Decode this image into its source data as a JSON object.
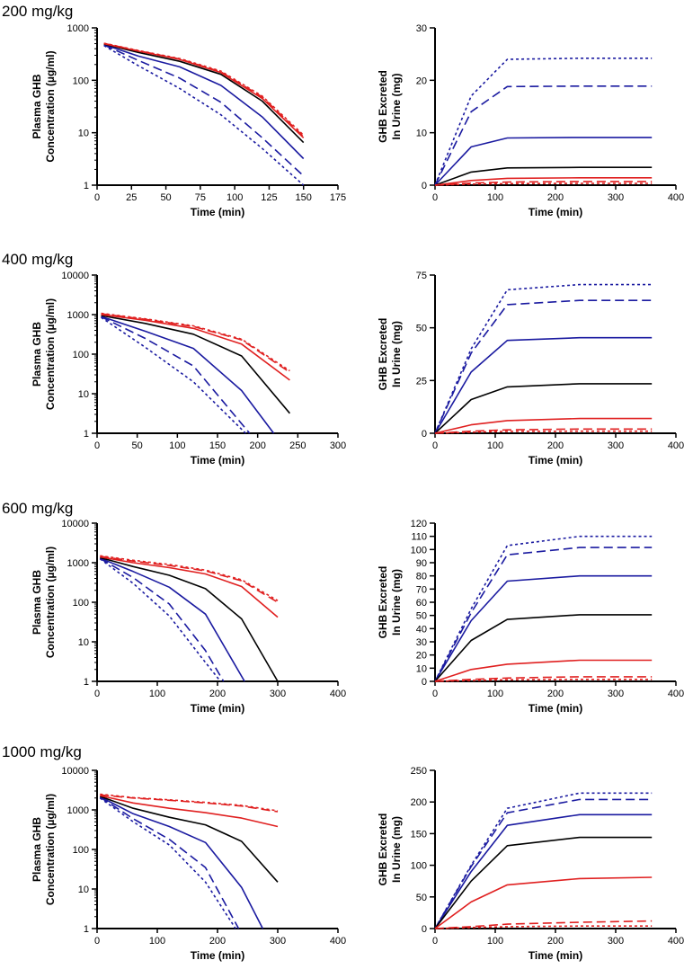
{
  "figure": {
    "series_styles": [
      {
        "color": "#1a1aa0",
        "dash": "3,3"
      },
      {
        "color": "#1a1aa0",
        "dash": "10,5"
      },
      {
        "color": "#1a1aa0",
        "dash": ""
      },
      {
        "color": "#000000",
        "dash": ""
      },
      {
        "color": "#e02020",
        "dash": ""
      },
      {
        "color": "#e02020",
        "dash": "10,5"
      },
      {
        "color": "#e02020",
        "dash": "3,3"
      }
    ]
  },
  "chart_data": [
    {
      "panel": "200 mg/kg plasma",
      "type": "line",
      "yscale": "log",
      "title": "200 mg/kg",
      "xlabel": "Time (min)",
      "ylabel": [
        "Plasma GHB",
        "Concentration (µg/ml)"
      ],
      "xlim": [
        0,
        175
      ],
      "ylim": [
        1,
        1000
      ],
      "xticks": [
        0,
        25,
        50,
        75,
        100,
        125,
        150,
        175
      ],
      "yticks": [
        1,
        10,
        100,
        1000
      ],
      "ytick_labels": [
        "1",
        "10",
        "100",
        "1000"
      ],
      "x": [
        5,
        30,
        60,
        90,
        120,
        150
      ],
      "series": [
        {
          "values": [
            460,
            190,
            70,
            22,
            5,
            0.9
          ]
        },
        {
          "values": [
            470,
            240,
            110,
            38,
            8,
            1.5
          ]
        },
        {
          "values": [
            480,
            290,
            180,
            80,
            20,
            3.2
          ]
        },
        {
          "values": [
            490,
            340,
            230,
            130,
            40,
            6.5
          ]
        },
        {
          "values": [
            500,
            360,
            250,
            140,
            45,
            8
          ]
        },
        {
          "values": [
            505,
            365,
            255,
            145,
            48,
            8.5
          ]
        },
        {
          "values": [
            510,
            370,
            260,
            150,
            50,
            9
          ]
        }
      ]
    },
    {
      "panel": "200 mg/kg urine",
      "type": "line",
      "yscale": "linear",
      "xlabel": "Time (min)",
      "ylabel": [
        "GHB Excreted",
        "In Urine (mg)"
      ],
      "xlim": [
        0,
        400
      ],
      "ylim": [
        0,
        30
      ],
      "xticks": [
        0,
        100,
        200,
        300,
        400
      ],
      "yticks": [
        0,
        10,
        20,
        30
      ],
      "x": [
        0,
        60,
        120,
        240,
        360
      ],
      "series": [
        {
          "values": [
            0,
            17,
            24,
            24.2,
            24.2
          ]
        },
        {
          "values": [
            0,
            14,
            18.8,
            18.9,
            18.9
          ]
        },
        {
          "values": [
            0,
            7.3,
            9.0,
            9.1,
            9.1
          ]
        },
        {
          "values": [
            0,
            2.5,
            3.3,
            3.4,
            3.4
          ]
        },
        {
          "values": [
            0,
            0.9,
            1.3,
            1.4,
            1.4
          ]
        },
        {
          "values": [
            0,
            0.4,
            0.6,
            0.7,
            0.7
          ]
        },
        {
          "values": [
            0,
            0.2,
            0.3,
            0.35,
            0.35
          ]
        }
      ]
    },
    {
      "panel": "400 mg/kg plasma",
      "type": "line",
      "yscale": "log",
      "title": "400 mg/kg",
      "xlabel": "Time (min)",
      "ylabel": [
        "Plasma GHB",
        "Concentration (µg/ml)"
      ],
      "xlim": [
        0,
        300
      ],
      "ylim": [
        1,
        10000
      ],
      "xticks": [
        0,
        50,
        100,
        150,
        200,
        250,
        300
      ],
      "yticks": [
        1,
        10,
        100,
        1000,
        10000
      ],
      "ytick_labels": [
        "1",
        "10",
        "100",
        "1000",
        "10000"
      ],
      "x": [
        5,
        60,
        120,
        180,
        240
      ],
      "series": [
        {
          "x": [
            5,
            60,
            120,
            185
          ],
          "values": [
            850,
            150,
            20,
            1.0
          ]
        },
        {
          "x": [
            5,
            60,
            120,
            190
          ],
          "values": [
            880,
            250,
            50,
            1.0
          ]
        },
        {
          "x": [
            5,
            60,
            120,
            180,
            220
          ],
          "values": [
            900,
            380,
            140,
            12,
            1.0
          ]
        },
        {
          "values": [
            950,
            600,
            320,
            90,
            3.2
          ]
        },
        {
          "values": [
            1000,
            720,
            450,
            180,
            22
          ]
        },
        {
          "values": [
            1050,
            760,
            500,
            230,
            35
          ]
        },
        {
          "values": [
            1080,
            780,
            520,
            240,
            38
          ]
        }
      ]
    },
    {
      "panel": "400 mg/kg urine",
      "type": "line",
      "yscale": "linear",
      "xlabel": "Time (min)",
      "ylabel": [
        "GHB Excreted",
        "In Urine (mg)"
      ],
      "xlim": [
        0,
        400
      ],
      "ylim": [
        0,
        75
      ],
      "xticks": [
        0,
        100,
        200,
        300,
        400
      ],
      "yticks": [
        0,
        25,
        50,
        75
      ],
      "x": [
        0,
        60,
        120,
        240,
        360
      ],
      "series": [
        {
          "values": [
            0,
            40,
            68,
            70.5,
            70.5
          ]
        },
        {
          "values": [
            0,
            38,
            61,
            63,
            63
          ]
        },
        {
          "values": [
            0,
            29,
            44,
            45.3,
            45.3
          ]
        },
        {
          "values": [
            0,
            16,
            22,
            23.5,
            23.5
          ]
        },
        {
          "values": [
            0,
            4,
            6,
            7,
            7
          ]
        },
        {
          "values": [
            0,
            1.0,
            1.6,
            2.0,
            2.0
          ]
        },
        {
          "values": [
            0,
            0.5,
            0.9,
            1.0,
            1.0
          ]
        }
      ]
    },
    {
      "panel": "600 mg/kg plasma",
      "type": "line",
      "yscale": "log",
      "title": "600 mg/kg",
      "xlabel": "Time (min)",
      "ylabel": [
        "Plasma GHB",
        "Concentration (µg/ml)"
      ],
      "xlim": [
        0,
        400
      ],
      "ylim": [
        1,
        10000
      ],
      "xticks": [
        0,
        100,
        200,
        300,
        400
      ],
      "yticks": [
        1,
        10,
        100,
        1000,
        10000
      ],
      "ytick_labels": [
        "1",
        "10",
        "100",
        "1000",
        "10000"
      ],
      "x": [
        5,
        60,
        120,
        180,
        240,
        300
      ],
      "series": [
        {
          "x": [
            5,
            60,
            120,
            180,
            205
          ],
          "values": [
            1250,
            300,
            45,
            3.0,
            1.0
          ]
        },
        {
          "x": [
            5,
            60,
            120,
            180,
            210
          ],
          "values": [
            1280,
            420,
            90,
            6.0,
            1.0
          ]
        },
        {
          "x": [
            5,
            60,
            120,
            180,
            245
          ],
          "values": [
            1300,
            600,
            240,
            50,
            1.0
          ]
        },
        {
          "x": [
            5,
            60,
            120,
            180,
            240,
            300
          ],
          "values": [
            1350,
            800,
            480,
            220,
            38,
            1.0
          ]
        },
        {
          "values": [
            1400,
            1000,
            750,
            520,
            250,
            42
          ]
        },
        {
          "values": [
            1450,
            1100,
            850,
            620,
            350,
            100
          ]
        },
        {
          "values": [
            1500,
            1150,
            900,
            650,
            370,
            110
          ]
        }
      ]
    },
    {
      "panel": "600 mg/kg urine",
      "type": "line",
      "yscale": "linear",
      "xlabel": "Time (min)",
      "ylabel": [
        "GHB Excreted",
        "In Urine (mg)"
      ],
      "xlim": [
        0,
        400
      ],
      "ylim": [
        0,
        120
      ],
      "xticks": [
        0,
        100,
        200,
        300,
        400
      ],
      "yticks": [
        0,
        10,
        20,
        30,
        40,
        50,
        60,
        70,
        80,
        90,
        100,
        110,
        120
      ],
      "x": [
        0,
        60,
        120,
        240,
        360
      ],
      "series": [
        {
          "values": [
            0,
            55,
            103,
            110,
            110
          ]
        },
        {
          "values": [
            0,
            52,
            96,
            101.5,
            101.5
          ]
        },
        {
          "values": [
            0,
            46,
            76,
            80,
            80
          ]
        },
        {
          "values": [
            0,
            31,
            47,
            50.5,
            50.5
          ]
        },
        {
          "values": [
            0,
            9,
            13,
            16,
            16
          ]
        },
        {
          "values": [
            0,
            1.5,
            2.5,
            3.5,
            3.5
          ]
        },
        {
          "values": [
            0,
            0.7,
            1.2,
            1.5,
            1.5
          ]
        }
      ]
    },
    {
      "panel": "1000 mg/kg plasma",
      "type": "line",
      "yscale": "log",
      "title": "1000 mg/kg",
      "xlabel": "Time (min)",
      "ylabel": [
        "Plasma GHB",
        "Concentration (µg/ml)"
      ],
      "xlim": [
        0,
        400
      ],
      "ylim": [
        1,
        10000
      ],
      "xticks": [
        0,
        100,
        200,
        300,
        400
      ],
      "yticks": [
        1,
        10,
        100,
        1000,
        10000
      ],
      "ytick_labels": [
        "1",
        "10",
        "100",
        "1000",
        "10000"
      ],
      "x": [
        5,
        60,
        120,
        180,
        240,
        300
      ],
      "series": [
        {
          "x": [
            5,
            60,
            120,
            180,
            230
          ],
          "values": [
            2000,
            500,
            130,
            15,
            1.0
          ]
        },
        {
          "x": [
            5,
            60,
            120,
            180,
            235
          ],
          "values": [
            2100,
            600,
            180,
            35,
            1.0
          ]
        },
        {
          "x": [
            5,
            60,
            120,
            180,
            240,
            275
          ],
          "values": [
            2150,
            800,
            380,
            150,
            11,
            1.0
          ]
        },
        {
          "values": [
            2200,
            1100,
            650,
            420,
            160,
            15
          ]
        },
        {
          "values": [
            2300,
            1500,
            1100,
            850,
            620,
            380
          ]
        },
        {
          "values": [
            2400,
            2000,
            1750,
            1500,
            1250,
            900
          ]
        },
        {
          "values": [
            2500,
            2050,
            1800,
            1550,
            1300,
            950
          ]
        }
      ]
    },
    {
      "panel": "1000 mg/kg urine",
      "type": "line",
      "yscale": "linear",
      "xlabel": "Time (min)",
      "ylabel": [
        "GHB Excreted",
        "In Urine (mg)"
      ],
      "xlim": [
        0,
        400
      ],
      "ylim": [
        0,
        250
      ],
      "xticks": [
        0,
        100,
        200,
        300,
        400
      ],
      "yticks": [
        0,
        50,
        100,
        150,
        200,
        250
      ],
      "x": [
        0,
        60,
        120,
        240,
        360
      ],
      "series": [
        {
          "values": [
            0,
            100,
            190,
            214,
            214
          ]
        },
        {
          "values": [
            0,
            98,
            183,
            204,
            204
          ]
        },
        {
          "values": [
            0,
            90,
            163,
            180,
            180
          ]
        },
        {
          "values": [
            0,
            75,
            131,
            144,
            144
          ]
        },
        {
          "values": [
            0,
            42,
            69,
            79,
            81
          ]
        },
        {
          "values": [
            0,
            3,
            7,
            10,
            12
          ]
        },
        {
          "values": [
            0,
            1.5,
            3,
            4,
            4
          ]
        }
      ]
    }
  ]
}
